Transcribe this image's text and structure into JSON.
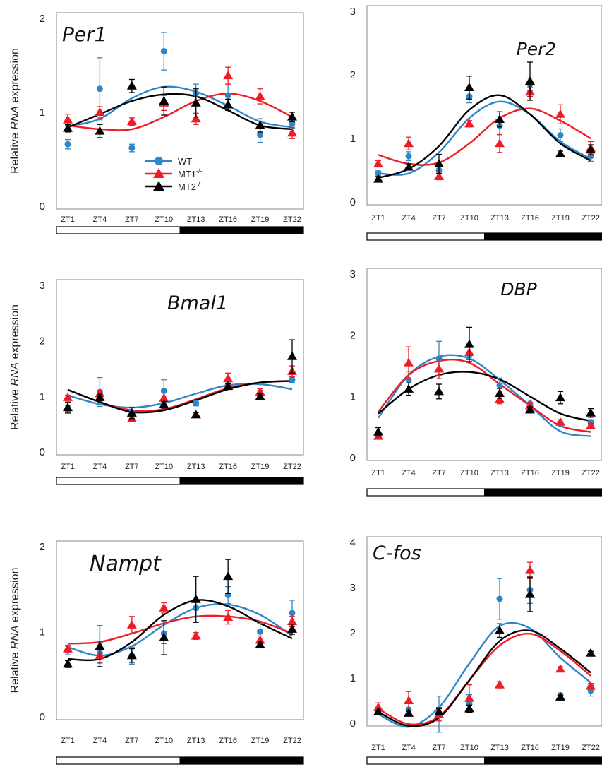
{
  "ylabel_prefix": "Relative ",
  "ylabel_italic": "RNA",
  "ylabel_suffix": " expression",
  "legend": [
    {
      "label": "WT",
      "sup": "",
      "color": "#2e86c8",
      "marker": "circle"
    },
    {
      "label": "MT1",
      "sup": "-/-",
      "color": "#ee1c24",
      "marker": "triangle"
    },
    {
      "label": "MT2",
      "sup": "-/-",
      "color": "#000000",
      "marker": "triangle"
    }
  ],
  "chart_data": [
    {
      "type": "scatter",
      "title": "Per1",
      "ylim": [
        0,
        2
      ],
      "ytick_labels": [
        "0",
        "1",
        "2"
      ],
      "categories": [
        "ZT1",
        "ZT4",
        "ZT7",
        "ZT10",
        "ZT13",
        "ZT16",
        "ZT19",
        "ZT22"
      ],
      "light_dark_bar": [
        "light",
        "light",
        "light",
        "light",
        "dark",
        "dark",
        "dark",
        "dark"
      ],
      "series": [
        {
          "name": "WT",
          "values": [
            0.66,
            1.25,
            0.62,
            1.65,
            1.2,
            1.18,
            0.76,
            0.88
          ],
          "errors": [
            0.05,
            0.33,
            0.04,
            0.2,
            0.1,
            0.12,
            0.08,
            0.05
          ],
          "fit": [
            0.85,
            0.93,
            1.15,
            1.27,
            1.22,
            1.07,
            0.9,
            0.84
          ]
        },
        {
          "name": "MT1-/-",
          "values": [
            0.92,
            1.0,
            0.9,
            1.1,
            0.93,
            1.39,
            1.17,
            0.78
          ],
          "errors": [
            0.06,
            0.06,
            0.04,
            0.08,
            0.06,
            0.09,
            0.08,
            0.06
          ],
          "fit": [
            0.86,
            0.82,
            0.82,
            0.95,
            1.12,
            1.2,
            1.12,
            0.95
          ]
        },
        {
          "name": "MT2-/-",
          "values": [
            0.83,
            0.8,
            1.28,
            1.12,
            1.1,
            1.08,
            0.86,
            0.95
          ],
          "errors": [
            0.04,
            0.07,
            0.07,
            0.15,
            0.15,
            0.06,
            0.07,
            0.05
          ],
          "fit": [
            0.84,
            0.98,
            1.12,
            1.19,
            1.17,
            1.02,
            0.86,
            0.82
          ]
        }
      ]
    },
    {
      "type": "scatter",
      "title": "Per2",
      "ylim": [
        0,
        3
      ],
      "ytick_labels": [
        "0",
        "1",
        "2",
        "3"
      ],
      "categories": [
        "ZT1",
        "ZT4",
        "ZT7",
        "ZT10",
        "ZT13",
        "ZT16",
        "ZT19",
        "ZT22"
      ],
      "light_dark_bar": [
        "light",
        "light",
        "light",
        "light",
        "dark",
        "dark",
        "dark",
        "dark"
      ],
      "series": [
        {
          "name": "WT",
          "values": [
            0.45,
            0.72,
            0.5,
            1.66,
            1.2,
            1.85,
            1.05,
            0.72
          ],
          "errors": [
            0.04,
            0.07,
            0.05,
            0.1,
            0.14,
            0.1,
            0.1,
            0.08
          ],
          "fit": [
            0.45,
            0.45,
            0.78,
            1.32,
            1.58,
            1.38,
            0.95,
            0.68
          ]
        },
        {
          "name": "MT1-/-",
          "values": [
            0.6,
            0.92,
            0.4,
            1.23,
            0.92,
            1.73,
            1.38,
            0.85
          ],
          "errors": [
            0.05,
            0.1,
            0.05,
            0.05,
            0.14,
            0.07,
            0.15,
            0.1
          ],
          "fit": [
            0.74,
            0.6,
            0.62,
            0.92,
            1.32,
            1.47,
            1.28,
            1.0
          ]
        },
        {
          "name": "MT2-/-",
          "values": [
            0.36,
            0.55,
            0.6,
            1.8,
            1.3,
            1.9,
            0.76,
            0.82
          ],
          "errors": [
            0.04,
            0.05,
            0.15,
            0.18,
            0.12,
            0.3,
            0.04,
            0.08
          ],
          "fit": [
            0.38,
            0.52,
            0.88,
            1.45,
            1.68,
            1.38,
            0.92,
            0.65
          ]
        }
      ]
    },
    {
      "type": "scatter",
      "title": "Bmal1",
      "ylim": [
        0,
        3
      ],
      "ytick_labels": [
        "0",
        "1",
        "2",
        "3"
      ],
      "categories": [
        "ZT1",
        "ZT4",
        "ZT7",
        "ZT10",
        "ZT13",
        "ZT16",
        "ZT19",
        "ZT22"
      ],
      "light_dark_bar": [
        "light",
        "light",
        "light",
        "light",
        "dark",
        "dark",
        "dark",
        "dark"
      ],
      "series": [
        {
          "name": "WT",
          "values": [
            0.78,
            1.08,
            0.7,
            1.1,
            0.88,
            1.2,
            1.05,
            1.3
          ],
          "errors": [
            0.05,
            0.26,
            0.05,
            0.2,
            0.05,
            0.06,
            0.06,
            0.05
          ],
          "fit": [
            1.02,
            0.86,
            0.8,
            0.88,
            1.05,
            1.2,
            1.22,
            1.13
          ]
        },
        {
          "name": "MT1-/-",
          "values": [
            0.98,
            1.05,
            0.6,
            0.97,
            0.67,
            1.32,
            1.08,
            1.45
          ],
          "errors": [
            0.04,
            0.06,
            0.05,
            0.04,
            0.04,
            0.1,
            0.06,
            0.1
          ],
          "fit": [
            1.12,
            0.9,
            0.75,
            0.77,
            0.95,
            1.15,
            1.25,
            1.28
          ]
        },
        {
          "name": "MT2-/-",
          "values": [
            0.8,
            0.98,
            0.7,
            0.85,
            0.67,
            1.18,
            1.0,
            1.72
          ],
          "errors": [
            0.1,
            0.06,
            0.1,
            0.06,
            0.04,
            0.05,
            0.05,
            0.3
          ],
          "fit": [
            1.12,
            0.9,
            0.72,
            0.75,
            0.93,
            1.13,
            1.25,
            1.28
          ]
        }
      ]
    },
    {
      "type": "scatter",
      "title": "DBP",
      "ylim": [
        0,
        3
      ],
      "ytick_labels": [
        "0",
        "1",
        "2",
        "3"
      ],
      "categories": [
        "ZT1",
        "ZT4",
        "ZT7",
        "ZT10",
        "ZT13",
        "ZT16",
        "ZT19",
        "ZT22"
      ],
      "light_dark_bar": [
        "light",
        "light",
        "light",
        "light",
        "dark",
        "dark",
        "dark",
        "dark"
      ],
      "series": [
        {
          "name": "WT",
          "values": [
            0.35,
            1.27,
            1.62,
            1.68,
            1.18,
            0.88,
            0.55,
            0.58
          ],
          "errors": [
            0.04,
            0.14,
            0.28,
            0.04,
            0.12,
            0.06,
            0.04,
            0.04
          ],
          "fit": [
            0.65,
            1.35,
            1.65,
            1.62,
            1.27,
            0.85,
            0.43,
            0.35
          ]
        },
        {
          "name": "MT1-/-",
          "values": [
            0.35,
            1.55,
            1.45,
            1.72,
            0.95,
            0.85,
            0.58,
            0.52
          ],
          "errors": [
            0.04,
            0.26,
            0.16,
            0.12,
            0.07,
            0.05,
            0.04,
            0.04
          ],
          "fit": [
            0.75,
            1.35,
            1.58,
            1.55,
            1.2,
            0.85,
            0.52,
            0.42
          ]
        },
        {
          "name": "MT2-/-",
          "values": [
            0.42,
            1.12,
            1.08,
            1.85,
            1.05,
            0.78,
            0.98,
            0.73
          ],
          "errors": [
            0.07,
            0.1,
            0.12,
            0.28,
            0.08,
            0.05,
            0.1,
            0.07
          ],
          "fit": [
            0.72,
            1.12,
            1.35,
            1.4,
            1.28,
            1.0,
            0.72,
            0.6
          ]
        }
      ]
    },
    {
      "type": "scatter",
      "title": "Nampt",
      "ylim": [
        0,
        2
      ],
      "ytick_labels": [
        "0",
        "1",
        "2"
      ],
      "categories": [
        "ZT1",
        "ZT4",
        "ZT7",
        "ZT10",
        "ZT13",
        "ZT16",
        "ZT19",
        "ZT22"
      ],
      "light_dark_bar": [
        "light",
        "light",
        "light",
        "light",
        "dark",
        "dark",
        "dark",
        "dark"
      ],
      "series": [
        {
          "name": "WT",
          "values": [
            0.78,
            0.75,
            0.72,
            0.98,
            1.28,
            1.43,
            1.0,
            1.22
          ],
          "errors": [
            0.05,
            0.12,
            0.1,
            0.12,
            0.1,
            0.1,
            0.1,
            0.15
          ],
          "fit": [
            0.82,
            0.72,
            0.83,
            1.08,
            1.28,
            1.32,
            1.2,
            0.95
          ]
        },
        {
          "name": "MT1-/-",
          "values": [
            0.8,
            0.72,
            1.08,
            1.28,
            0.95,
            1.17,
            0.9,
            1.12
          ],
          "errors": [
            0.04,
            0.08,
            0.1,
            0.06,
            0.04,
            0.08,
            0.05,
            0.06
          ],
          "fit": [
            0.86,
            0.88,
            0.98,
            1.1,
            1.18,
            1.18,
            1.12,
            0.98
          ]
        },
        {
          "name": "MT2-/-",
          "values": [
            0.62,
            0.83,
            0.72,
            0.93,
            1.38,
            1.65,
            0.85,
            1.03
          ],
          "errors": [
            0.04,
            0.24,
            0.08,
            0.2,
            0.27,
            0.2,
            0.04,
            0.06
          ],
          "fit": [
            0.68,
            0.68,
            0.88,
            1.2,
            1.37,
            1.3,
            1.1,
            0.92
          ]
        }
      ]
    },
    {
      "type": "scatter",
      "title": "C-fos",
      "ylim": [
        0,
        4
      ],
      "ytick_labels": [
        "0",
        "1",
        "2",
        "3",
        "4"
      ],
      "categories": [
        "ZT1",
        "ZT4",
        "ZT7",
        "ZT10",
        "ZT13",
        "ZT16",
        "ZT19",
        "ZT22"
      ],
      "light_dark_bar": [
        "light",
        "light",
        "light",
        "light",
        "dark",
        "dark",
        "dark",
        "dark"
      ],
      "series": [
        {
          "name": "WT",
          "values": [
            0.27,
            0.3,
            0.2,
            0.43,
            2.75,
            2.95,
            0.62,
            0.72
          ],
          "errors": [
            0.05,
            0.05,
            0.4,
            0.2,
            0.45,
            0.3,
            0.04,
            0.12
          ],
          "fit": [
            0.2,
            -0.08,
            0.35,
            1.32,
            2.15,
            2.1,
            1.45,
            0.9
          ]
        },
        {
          "name": "MT1-/-",
          "values": [
            0.35,
            0.5,
            0.2,
            0.55,
            0.85,
            3.38,
            1.2,
            0.82
          ],
          "errors": [
            0.1,
            0.2,
            0.15,
            0.3,
            0.07,
            0.18,
            0.05,
            0.06
          ],
          "fit": [
            0.32,
            -0.02,
            0.15,
            0.95,
            1.72,
            1.98,
            1.6,
            1.05
          ]
        },
        {
          "name": "MT2-/-",
          "values": [
            0.25,
            0.22,
            0.25,
            0.32,
            2.05,
            2.85,
            0.58,
            1.55
          ],
          "errors": [
            0.04,
            0.04,
            0.07,
            0.08,
            0.15,
            0.38,
            0.04,
            0.04
          ],
          "fit": [
            0.25,
            -0.06,
            0.12,
            0.95,
            1.82,
            2.05,
            1.65,
            1.12
          ]
        }
      ]
    }
  ]
}
